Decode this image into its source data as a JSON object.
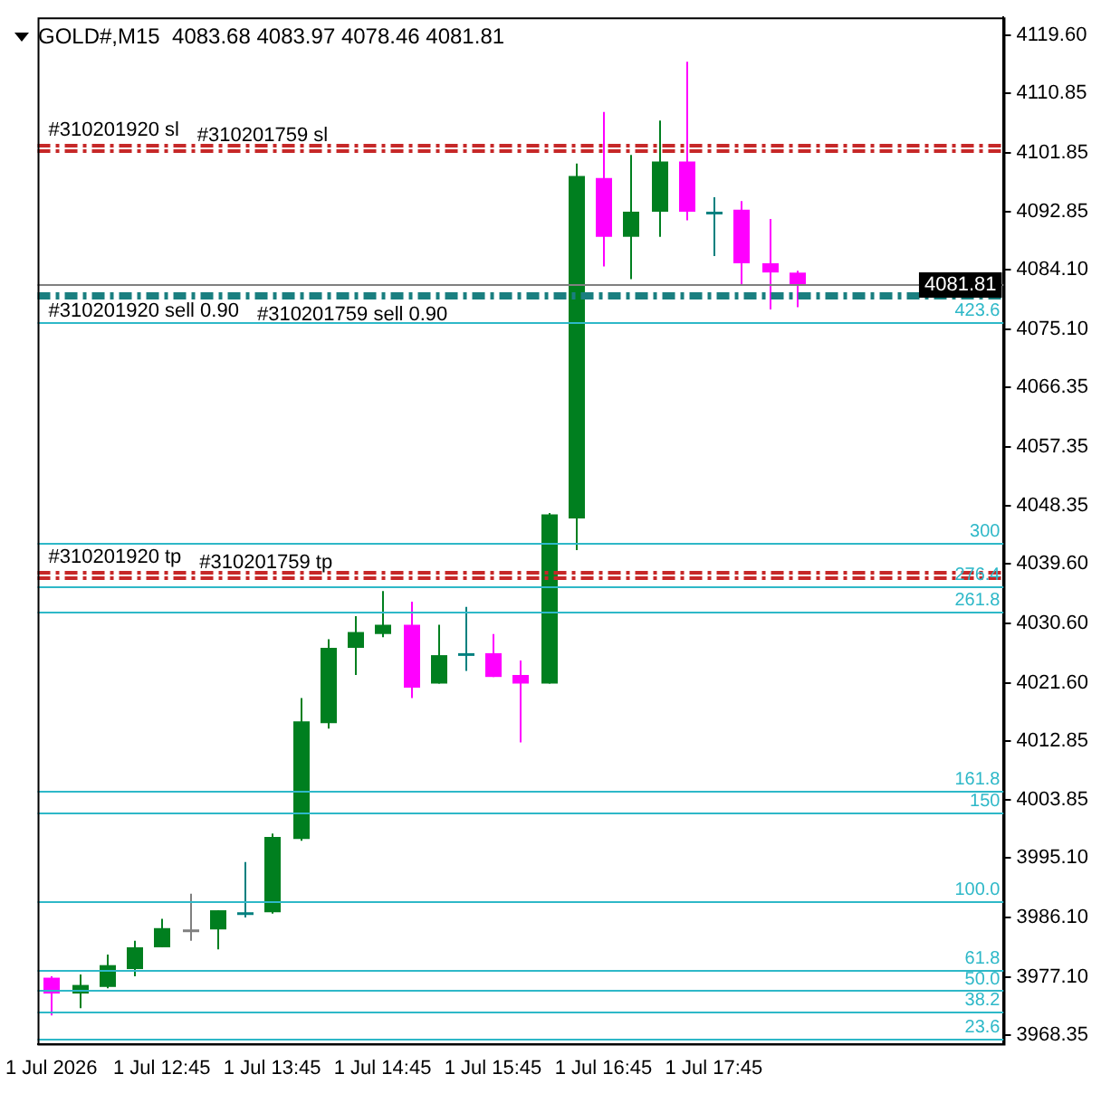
{
  "chart_data": {
    "type": "candlestick",
    "title": "GOLD#,M15  4083.68 4083.97 4078.46 4081.81",
    "categories": [
      "1 Jul 2026",
      null,
      null,
      null,
      "1 Jul 12:45",
      null,
      null,
      null,
      "1 Jul 13:45",
      null,
      null,
      null,
      "1 Jul 14:45",
      null,
      null,
      null,
      "1 Jul 15:45",
      null,
      null,
      null,
      "1 Jul 16:45",
      null,
      null,
      null,
      "1 Jul 17:45",
      null,
      null,
      null,
      null,
      null,
      null,
      null,
      null,
      null,
      null
    ],
    "ohlc": [
      [
        3977.0,
        3977.2,
        3971.3,
        3974.6
      ],
      [
        3974.6,
        3977.5,
        3972.4,
        3975.9
      ],
      [
        3975.6,
        3980.5,
        3975.4,
        3978.9
      ],
      [
        3978.3,
        3982.6,
        3977.2,
        3981.6
      ],
      [
        3981.6,
        3985.9,
        3981.6,
        3984.5
      ],
      [
        3984.2,
        3989.7,
        3982.6,
        3984.3
      ],
      [
        3984.3,
        3987.2,
        3981.3,
        3987.2
      ],
      [
        3986.6,
        3994.5,
        3986.1,
        3986.9
      ],
      [
        3986.9,
        3998.8,
        3986.7,
        3998.3
      ],
      [
        3998.0,
        4019.3,
        3997.7,
        4015.8
      ],
      [
        4015.5,
        4028.2,
        4014.7,
        4026.9
      ],
      [
        4026.9,
        4031.7,
        4022.8,
        4029.3
      ],
      [
        4029.0,
        4035.5,
        4028.5,
        4030.4
      ],
      [
        4030.4,
        4033.9,
        4019.3,
        4020.9
      ],
      [
        4021.5,
        4030.4,
        4021.5,
        4025.8
      ],
      [
        4025.9,
        4033.1,
        4023.4,
        4026.1
      ],
      [
        4026.1,
        4029.0,
        4022.5,
        4022.5
      ],
      [
        4022.8,
        4025.0,
        4012.6,
        4021.5
      ],
      [
        4021.5,
        4047.3,
        4021.5,
        4047.1
      ],
      [
        4046.5,
        4100.2,
        4041.7,
        4098.3
      ],
      [
        4098.0,
        4108.0,
        4084.6,
        4089.1
      ],
      [
        4089.1,
        4101.5,
        4082.7,
        4092.9
      ],
      [
        4092.9,
        4106.7,
        4089.1,
        4100.5
      ],
      [
        4100.5,
        4115.6,
        4091.6,
        4092.9
      ],
      [
        4092.6,
        4095.1,
        4086.2,
        4092.9
      ],
      [
        4093.2,
        4094.5,
        4081.9,
        4085.1
      ],
      [
        4085.1,
        4091.8,
        4078.1,
        4083.7
      ],
      [
        4083.68,
        4083.97,
        4078.46,
        4081.81
      ],
      null,
      null,
      null,
      null,
      null,
      null,
      null
    ],
    "colors": [
      "#ff00ff",
      "#007f1f",
      "#007f1f",
      "#007f1f",
      "#007f1f",
      "#808080",
      "#007f1f",
      "#00807f",
      "#007f1f",
      "#007f1f",
      "#007f1f",
      "#007f1f",
      "#007f1f",
      "#ff00ff",
      "#007f1f",
      "#00807f",
      "#ff00ff",
      "#ff00ff",
      "#007f1f",
      "#007f1f",
      "#ff00ff",
      "#007f1f",
      "#007f1f",
      "#ff00ff",
      "#00807f",
      "#ff00ff",
      "#ff00ff",
      "#ff00ff",
      null,
      null,
      null,
      null,
      null,
      null,
      null
    ],
    "ylim": [
      3967.0,
      4122.3
    ],
    "yticks": [
      {
        "value": 3968.35,
        "label": "3968.35"
      },
      {
        "value": 3977.1,
        "label": "3977.10"
      },
      {
        "value": 3986.1,
        "label": "3986.10"
      },
      {
        "value": 3995.1,
        "label": "3995.10"
      },
      {
        "value": 4003.85,
        "label": "4003.85"
      },
      {
        "value": 4012.85,
        "label": "4012.85"
      },
      {
        "value": 4021.6,
        "label": "4021.60"
      },
      {
        "value": 4030.6,
        "label": "4030.60"
      },
      {
        "value": 4039.6,
        "label": "4039.60"
      },
      {
        "value": 4048.35,
        "label": "4048.35"
      },
      {
        "value": 4057.35,
        "label": "4057.35"
      },
      {
        "value": 4066.35,
        "label": "4066.35"
      },
      {
        "value": 4075.1,
        "label": "4075.10"
      },
      {
        "value": 4084.1,
        "label": "4084.10"
      },
      {
        "value": 4092.85,
        "label": "4092.85"
      },
      {
        "value": 4101.85,
        "label": "4101.85"
      },
      {
        "value": 4110.85,
        "label": "4110.85"
      },
      {
        "value": 4119.6,
        "label": "4119.60"
      }
    ],
    "ref_lines": [
      {
        "axis": "y",
        "value": 4102.9,
        "label": "#310201920 sl",
        "color": "#c62828",
        "line_style": "dashed"
      },
      {
        "axis": "y",
        "value": 4102.1,
        "label": "#310201759 sl",
        "color": "#c62828",
        "line_style": "dashed"
      },
      {
        "axis": "y",
        "value": 4080.5,
        "label": "#310201920 sell 0.90",
        "color": "#1a7f80",
        "line_style": "dashed"
      },
      {
        "axis": "y",
        "value": 4080.0,
        "label": "#310201759 sell 0.90",
        "color": "#1a7f80",
        "line_style": "dashed"
      },
      {
        "axis": "y",
        "value": 4038.4,
        "label": "#310201920 tp",
        "color": "#c62828",
        "line_style": "dashed"
      },
      {
        "axis": "y",
        "value": 4037.6,
        "label": "#310201759 tp",
        "color": "#c62828",
        "line_style": "dashed"
      },
      {
        "axis": "y",
        "value": 4081.81,
        "label": "4081.81",
        "color": "#808080",
        "line_style": "solid"
      },
      {
        "axis": "y",
        "value": 4076.2,
        "color": "#2eb8c8",
        "line_style": "solid"
      },
      {
        "axis": "y",
        "value": 4042.8,
        "color": "#2eb8c8",
        "line_style": "solid"
      },
      {
        "axis": "y",
        "value": 4036.3,
        "color": "#2eb8c8",
        "line_style": "solid"
      },
      {
        "axis": "y",
        "value": 4032.5,
        "color": "#2eb8c8",
        "line_style": "solid"
      },
      {
        "axis": "y",
        "value": 4005.3,
        "color": "#2eb8c8",
        "line_style": "solid"
      },
      {
        "axis": "y",
        "value": 4002.1,
        "color": "#2eb8c8",
        "line_style": "solid"
      },
      {
        "axis": "y",
        "value": 3988.6,
        "color": "#2eb8c8",
        "line_style": "solid"
      },
      {
        "axis": "y",
        "value": 3978.3,
        "color": "#2eb8c8",
        "line_style": "solid"
      },
      {
        "axis": "y",
        "value": 3975.1,
        "color": "#2eb8c8",
        "line_style": "solid"
      },
      {
        "axis": "y",
        "value": 3971.9,
        "color": "#2eb8c8",
        "line_style": "solid"
      },
      {
        "axis": "y",
        "value": 3967.9,
        "color": "#2eb8c8",
        "line_style": "solid"
      }
    ],
    "annotations": [
      {
        "text": "423.6",
        "y": 4076.2
      },
      {
        "text": "300",
        "y": 4042.8
      },
      {
        "text": "276.4",
        "y": 4036.3
      },
      {
        "text": "261.8",
        "y": 4032.5
      },
      {
        "text": "161.8",
        "y": 4005.3
      },
      {
        "text": "150",
        "y": 4002.1
      },
      {
        "text": "100.0",
        "y": 3988.6
      },
      {
        "text": "61.8",
        "y": 3978.3
      },
      {
        "text": "50.0",
        "y": 3975.1
      },
      {
        "text": "38.2",
        "y": 3971.9
      },
      {
        "text": "23.6",
        "y": 3967.9
      }
    ],
    "legend": false,
    "grid": false
  }
}
